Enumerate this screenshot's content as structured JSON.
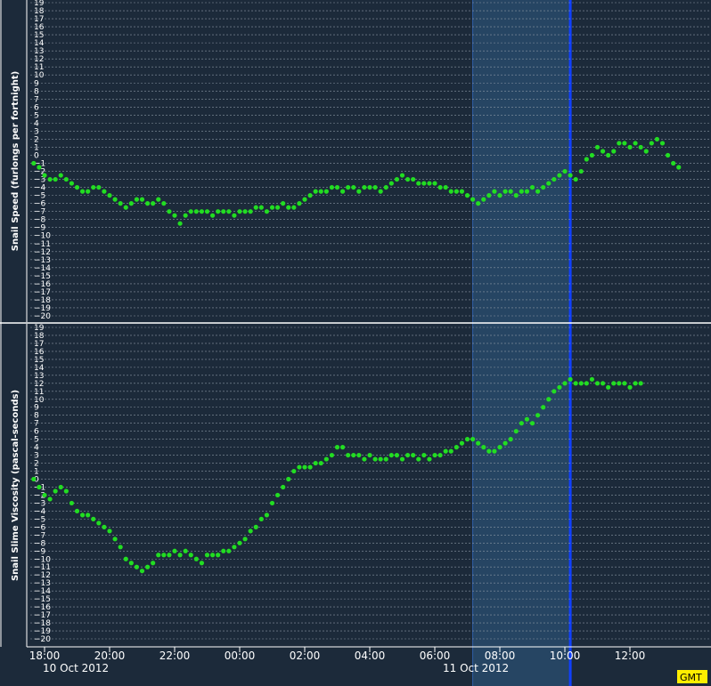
{
  "chart_data": [
    {
      "type": "scatter",
      "ylabel": "Snail Speed (furlongs per fortnight)",
      "ylim": [
        -20,
        19
      ],
      "yticks": [
        19,
        18,
        17,
        16,
        15,
        14,
        13,
        12,
        11,
        10,
        9,
        8,
        7,
        6,
        5,
        4,
        3,
        2,
        1,
        0,
        -1,
        -2,
        -3,
        -4,
        -5,
        -6,
        -7,
        -8,
        -9,
        -10,
        -11,
        -12,
        -13,
        -14,
        -15,
        -16,
        -17,
        -18,
        -19,
        -20
      ],
      "grid": true,
      "series": [
        {
          "color": "#22dd22",
          "points": [
            [
              "17:40",
              -1
            ],
            [
              "17:50",
              -1.5
            ],
            [
              "18:00",
              -2.5
            ],
            [
              "18:10",
              -3
            ],
            [
              "18:20",
              -3
            ],
            [
              "18:30",
              -2.5
            ],
            [
              "18:40",
              -3
            ],
            [
              "18:50",
              -3.5
            ],
            [
              "19:00",
              -4
            ],
            [
              "19:10",
              -4.5
            ],
            [
              "19:20",
              -4.5
            ],
            [
              "19:30",
              -4
            ],
            [
              "19:40",
              -4
            ],
            [
              "19:50",
              -4.5
            ],
            [
              "20:00",
              -5
            ],
            [
              "20:10",
              -5.5
            ],
            [
              "20:20",
              -6
            ],
            [
              "20:30",
              -6.5
            ],
            [
              "20:40",
              -6
            ],
            [
              "20:50",
              -5.5
            ],
            [
              "21:00",
              -5.5
            ],
            [
              "21:10",
              -6
            ],
            [
              "21:20",
              -6
            ],
            [
              "21:30",
              -5.5
            ],
            [
              "21:40",
              -6
            ],
            [
              "21:50",
              -7
            ],
            [
              "22:00",
              -7.5
            ],
            [
              "22:10",
              -8.5
            ],
            [
              "22:20",
              -7.5
            ],
            [
              "22:30",
              -7
            ],
            [
              "22:40",
              -7
            ],
            [
              "22:50",
              -7
            ],
            [
              "23:00",
              -7
            ],
            [
              "23:10",
              -7.5
            ],
            [
              "23:20",
              -7
            ],
            [
              "23:30",
              -7
            ],
            [
              "23:40",
              -7
            ],
            [
              "23:50",
              -7.5
            ],
            [
              "00:00",
              -7
            ],
            [
              "00:10",
              -7
            ],
            [
              "00:20",
              -7
            ],
            [
              "00:30",
              -6.5
            ],
            [
              "00:40",
              -6.5
            ],
            [
              "00:50",
              -7
            ],
            [
              "01:00",
              -6.5
            ],
            [
              "01:10",
              -6.5
            ],
            [
              "01:20",
              -6
            ],
            [
              "01:30",
              -6.5
            ],
            [
              "01:40",
              -6.5
            ],
            [
              "01:50",
              -6
            ],
            [
              "02:00",
              -5.5
            ],
            [
              "02:10",
              -5
            ],
            [
              "02:20",
              -4.5
            ],
            [
              "02:30",
              -4.5
            ],
            [
              "02:40",
              -4.5
            ],
            [
              "02:50",
              -4
            ],
            [
              "03:00",
              -4
            ],
            [
              "03:10",
              -4.5
            ],
            [
              "03:20",
              -4
            ],
            [
              "03:30",
              -4
            ],
            [
              "03:40",
              -4.5
            ],
            [
              "03:50",
              -4
            ],
            [
              "04:00",
              -4
            ],
            [
              "04:10",
              -4
            ],
            [
              "04:20",
              -4.5
            ],
            [
              "04:30",
              -4
            ],
            [
              "04:40",
              -3.5
            ],
            [
              "04:50",
              -3
            ],
            [
              "05:00",
              -2.5
            ],
            [
              "05:10",
              -3
            ],
            [
              "05:20",
              -3
            ],
            [
              "05:30",
              -3.5
            ],
            [
              "05:40",
              -3.5
            ],
            [
              "05:50",
              -3.5
            ],
            [
              "06:00",
              -3.5
            ],
            [
              "06:10",
              -4
            ],
            [
              "06:20",
              -4
            ],
            [
              "06:30",
              -4.5
            ],
            [
              "06:40",
              -4.5
            ],
            [
              "06:50",
              -4.5
            ],
            [
              "07:00",
              -5
            ],
            [
              "07:10",
              -5.5
            ],
            [
              "07:20",
              -6
            ],
            [
              "07:30",
              -5.5
            ],
            [
              "07:40",
              -5
            ],
            [
              "07:50",
              -4.5
            ],
            [
              "08:00",
              -5
            ],
            [
              "08:10",
              -4.5
            ],
            [
              "08:20",
              -4.5
            ],
            [
              "08:30",
              -5
            ],
            [
              "08:40",
              -4.5
            ],
            [
              "08:50",
              -4.5
            ],
            [
              "09:00",
              -4
            ],
            [
              "09:10",
              -4.5
            ],
            [
              "09:20",
              -4
            ],
            [
              "09:30",
              -3.5
            ],
            [
              "09:40",
              -3
            ],
            [
              "09:50",
              -2.5
            ],
            [
              "10:00",
              -2
            ],
            [
              "10:10",
              -2.5
            ],
            [
              "10:20",
              -3
            ],
            [
              "10:30",
              -2
            ],
            [
              "10:40",
              -0.5
            ],
            [
              "10:50",
              0
            ],
            [
              "11:00",
              1
            ],
            [
              "11:10",
              0.5
            ],
            [
              "11:20",
              0
            ],
            [
              "11:30",
              0.5
            ],
            [
              "11:40",
              1.5
            ],
            [
              "11:50",
              1.5
            ],
            [
              "12:00",
              1
            ],
            [
              "12:10",
              1.5
            ],
            [
              "12:20",
              1
            ],
            [
              "12:30",
              0.5
            ],
            [
              "12:40",
              1.5
            ],
            [
              "12:50",
              2
            ],
            [
              "13:00",
              1.5
            ],
            [
              "13:10",
              0
            ],
            [
              "13:20",
              -1
            ],
            [
              "13:30",
              -1.5
            ]
          ]
        }
      ]
    },
    {
      "type": "scatter",
      "ylabel": "Snail Slime Viscosity (pascal-seconds)",
      "ylim": [
        -20,
        19
      ],
      "yticks": [
        19,
        18,
        17,
        16,
        15,
        14,
        13,
        12,
        11,
        10,
        9,
        8,
        7,
        6,
        5,
        4,
        3,
        2,
        1,
        0,
        -1,
        -2,
        -3,
        -4,
        -5,
        -6,
        -7,
        -8,
        -9,
        -10,
        -11,
        -12,
        -13,
        -14,
        -15,
        -16,
        -17,
        -18,
        -19,
        -20
      ],
      "grid": true,
      "series": [
        {
          "color": "#22dd22",
          "points": [
            [
              "17:40",
              0
            ],
            [
              "17:50",
              -1
            ],
            [
              "18:00",
              -2
            ],
            [
              "18:10",
              -2.5
            ],
            [
              "18:20",
              -1.5
            ],
            [
              "18:30",
              -1
            ],
            [
              "18:40",
              -1.5
            ],
            [
              "18:50",
              -3
            ],
            [
              "19:00",
              -4
            ],
            [
              "19:10",
              -4.5
            ],
            [
              "19:20",
              -4.5
            ],
            [
              "19:30",
              -5
            ],
            [
              "19:40",
              -5.5
            ],
            [
              "19:50",
              -6
            ],
            [
              "20:00",
              -6.5
            ],
            [
              "20:10",
              -7.5
            ],
            [
              "20:20",
              -8.5
            ],
            [
              "20:30",
              -10
            ],
            [
              "20:40",
              -10.5
            ],
            [
              "20:50",
              -11
            ],
            [
              "21:00",
              -11.5
            ],
            [
              "21:10",
              -11
            ],
            [
              "21:20",
              -10.5
            ],
            [
              "21:30",
              -9.5
            ],
            [
              "21:40",
              -9.5
            ],
            [
              "21:50",
              -9.5
            ],
            [
              "22:00",
              -9
            ],
            [
              "22:10",
              -9.5
            ],
            [
              "22:20",
              -9
            ],
            [
              "22:30",
              -9.5
            ],
            [
              "22:40",
              -10
            ],
            [
              "22:50",
              -10.5
            ],
            [
              "23:00",
              -9.5
            ],
            [
              "23:10",
              -9.5
            ],
            [
              "23:20",
              -9.5
            ],
            [
              "23:30",
              -9
            ],
            [
              "23:40",
              -9
            ],
            [
              "23:50",
              -8.5
            ],
            [
              "00:00",
              -8
            ],
            [
              "00:10",
              -7.5
            ],
            [
              "00:20",
              -6.5
            ],
            [
              "00:30",
              -6
            ],
            [
              "00:40",
              -5
            ],
            [
              "00:50",
              -4.5
            ],
            [
              "01:00",
              -3
            ],
            [
              "01:10",
              -2
            ],
            [
              "01:20",
              -1
            ],
            [
              "01:30",
              0
            ],
            [
              "01:40",
              1
            ],
            [
              "01:50",
              1.5
            ],
            [
              "02:00",
              1.5
            ],
            [
              "02:10",
              1.5
            ],
            [
              "02:20",
              2
            ],
            [
              "02:30",
              2
            ],
            [
              "02:40",
              2.5
            ],
            [
              "02:50",
              3
            ],
            [
              "03:00",
              4
            ],
            [
              "03:10",
              4
            ],
            [
              "03:20",
              3
            ],
            [
              "03:30",
              3
            ],
            [
              "03:40",
              3
            ],
            [
              "03:50",
              2.5
            ],
            [
              "04:00",
              3
            ],
            [
              "04:10",
              2.5
            ],
            [
              "04:20",
              2.5
            ],
            [
              "04:30",
              2.5
            ],
            [
              "04:40",
              3
            ],
            [
              "04:50",
              3
            ],
            [
              "05:00",
              2.5
            ],
            [
              "05:10",
              3
            ],
            [
              "05:20",
              3
            ],
            [
              "05:30",
              2.5
            ],
            [
              "05:40",
              3
            ],
            [
              "05:50",
              2.5
            ],
            [
              "06:00",
              3
            ],
            [
              "06:10",
              3
            ],
            [
              "06:20",
              3.5
            ],
            [
              "06:30",
              3.5
            ],
            [
              "06:40",
              4
            ],
            [
              "06:50",
              4.5
            ],
            [
              "07:00",
              5
            ],
            [
              "07:10",
              5
            ],
            [
              "07:20",
              4.5
            ],
            [
              "07:30",
              4
            ],
            [
              "07:40",
              3.5
            ],
            [
              "07:50",
              3.5
            ],
            [
              "08:00",
              4
            ],
            [
              "08:10",
              4.5
            ],
            [
              "08:20",
              5
            ],
            [
              "08:30",
              6
            ],
            [
              "08:40",
              7
            ],
            [
              "08:50",
              7.5
            ],
            [
              "09:00",
              7
            ],
            [
              "09:10",
              8
            ],
            [
              "09:20",
              9
            ],
            [
              "09:30",
              10
            ],
            [
              "09:40",
              11
            ],
            [
              "09:50",
              11.5
            ],
            [
              "10:00",
              12
            ],
            [
              "10:10",
              12.5
            ],
            [
              "10:20",
              12
            ],
            [
              "10:30",
              12
            ],
            [
              "10:40",
              12
            ],
            [
              "10:50",
              12.5
            ],
            [
              "11:00",
              12
            ],
            [
              "11:10",
              12
            ],
            [
              "11:20",
              11.5
            ],
            [
              "11:30",
              12
            ],
            [
              "11:40",
              12
            ],
            [
              "11:50",
              12
            ],
            [
              "12:00",
              11.5
            ],
            [
              "12:10",
              12
            ],
            [
              "12:20",
              12
            ]
          ]
        }
      ]
    }
  ],
  "xaxis": {
    "ticks": [
      "18:00",
      "20:00",
      "22:00",
      "00:00",
      "02:00",
      "04:00",
      "06:00",
      "08:00",
      "10:00",
      "12:00"
    ],
    "dates": [
      "10 Oct 2012",
      "11 Oct 2012"
    ],
    "timezone": "GMT"
  },
  "highlight": {
    "from": "07:10",
    "to": "10:10"
  },
  "colors": {
    "background": "#1c2a3a",
    "grid": "#8a96a4",
    "points": "#22dd22",
    "highlight": "#2a4f72",
    "cursor": "#1040ff",
    "gmt_badge": "#ffee00"
  }
}
